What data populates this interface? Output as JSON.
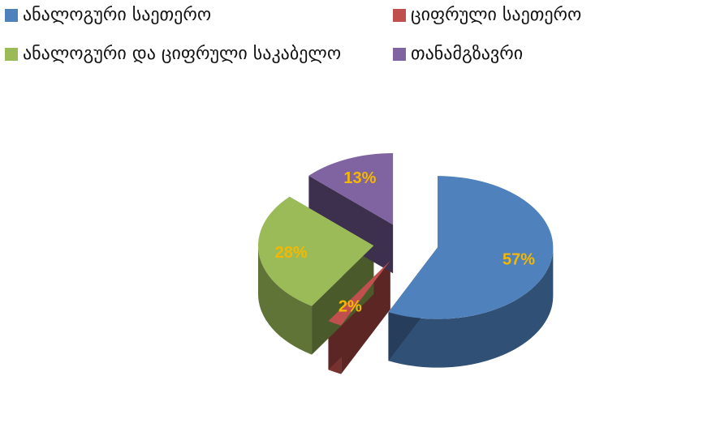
{
  "chart_data": {
    "type": "pie",
    "title": "",
    "categories": [
      "ანალოგური საეთერო",
      "ციფრული საეთერო",
      "ანალოგური და ციფრული საკაბელო",
      "თანამგზავრი"
    ],
    "values": [
      57,
      2,
      28,
      13
    ],
    "value_labels": [
      "57%",
      "2%",
      "28%",
      "13%"
    ],
    "colors": [
      "#4F81BD",
      "#C0504D",
      "#9BBB59",
      "#8064A2"
    ],
    "label_color": "#F5B800",
    "style": "3d exploded pie",
    "legend_position": "top"
  }
}
